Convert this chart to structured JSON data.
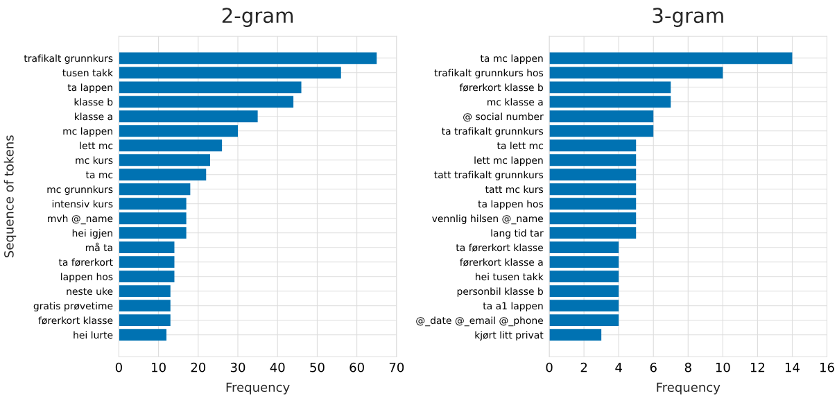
{
  "chart_data": [
    {
      "type": "bar",
      "orientation": "horizontal",
      "title": "2-gram",
      "xlabel": "Frequency",
      "ylabel": "Sequence of tokens",
      "color": "#0072b2",
      "grid": true,
      "xlim": [
        0,
        70
      ],
      "xticks": [
        0,
        10,
        20,
        30,
        40,
        50,
        60,
        70
      ],
      "categories": [
        "trafikalt grunnkurs",
        "tusen takk",
        "ta lappen",
        "klasse b",
        "klasse a",
        "mc lappen",
        "lett mc",
        "mc kurs",
        "ta mc",
        "mc grunnkurs",
        "intensiv kurs",
        "mvh @_name",
        "hei igjen",
        "må ta",
        "ta førerkort",
        "lappen hos",
        "neste uke",
        "gratis prøvetime",
        "førerkort klasse",
        "hei lurte"
      ],
      "values": [
        65,
        56,
        46,
        44,
        35,
        30,
        26,
        23,
        22,
        18,
        17,
        17,
        17,
        14,
        14,
        14,
        13,
        13,
        13,
        12
      ]
    },
    {
      "type": "bar",
      "orientation": "horizontal",
      "title": "3-gram",
      "xlabel": "Frequency",
      "color": "#0072b2",
      "grid": true,
      "xlim": [
        0,
        16
      ],
      "xticks": [
        0,
        2,
        4,
        6,
        8,
        10,
        12,
        14,
        16
      ],
      "categories": [
        "ta mc lappen",
        "trafikalt grunnkurs hos",
        "førerkort klasse b",
        "mc klasse a",
        "@ social number",
        "ta trafikalt grunnkurs",
        "ta lett mc",
        "lett mc lappen",
        "tatt trafikalt grunnkurs",
        "tatt mc kurs",
        "ta lappen hos",
        "vennlig hilsen @_name",
        "lang tid tar",
        "ta førerkort klasse",
        "førerkort klasse a",
        "hei tusen takk",
        "personbil klasse b",
        "ta a1 lappen",
        "@_date @_email @_phone",
        "kjørt litt privat"
      ],
      "values": [
        14,
        10,
        7,
        7,
        6,
        6,
        5,
        5,
        5,
        5,
        5,
        5,
        5,
        4,
        4,
        4,
        4,
        4,
        4,
        3
      ]
    }
  ]
}
